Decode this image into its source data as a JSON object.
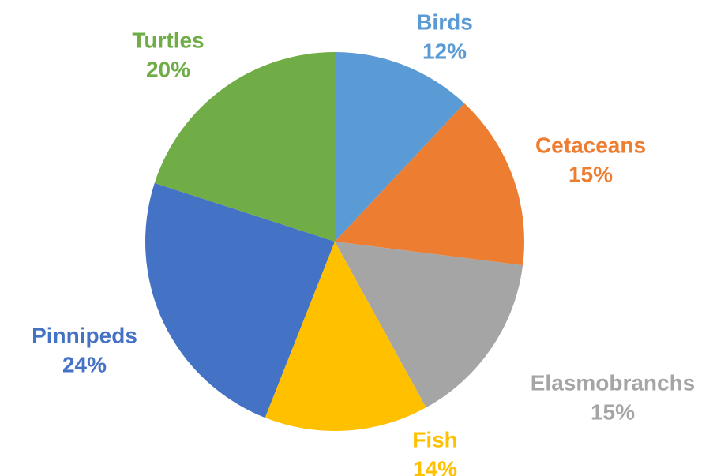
{
  "chart_data": {
    "type": "pie",
    "title": "",
    "legend": "none",
    "start_angle_deg": 0,
    "direction": "clockwise",
    "slices": [
      {
        "label": "Birds",
        "value": 12,
        "percent_text": "12%",
        "color": "#5B9BD5"
      },
      {
        "label": "Cetaceans",
        "value": 15,
        "percent_text": "15%",
        "color": "#ED7D31"
      },
      {
        "label": "Elasmobranchs",
        "value": 15,
        "percent_text": "15%",
        "color": "#A5A5A5"
      },
      {
        "label": "Fish",
        "value": 14,
        "percent_text": "14%",
        "color": "#FFC000"
      },
      {
        "label": "Pinnipeds",
        "value": 24,
        "percent_text": "24%",
        "color": "#4472C4"
      },
      {
        "label": "Turtles",
        "value": 20,
        "percent_text": "20%",
        "color": "#70AD47"
      }
    ]
  }
}
